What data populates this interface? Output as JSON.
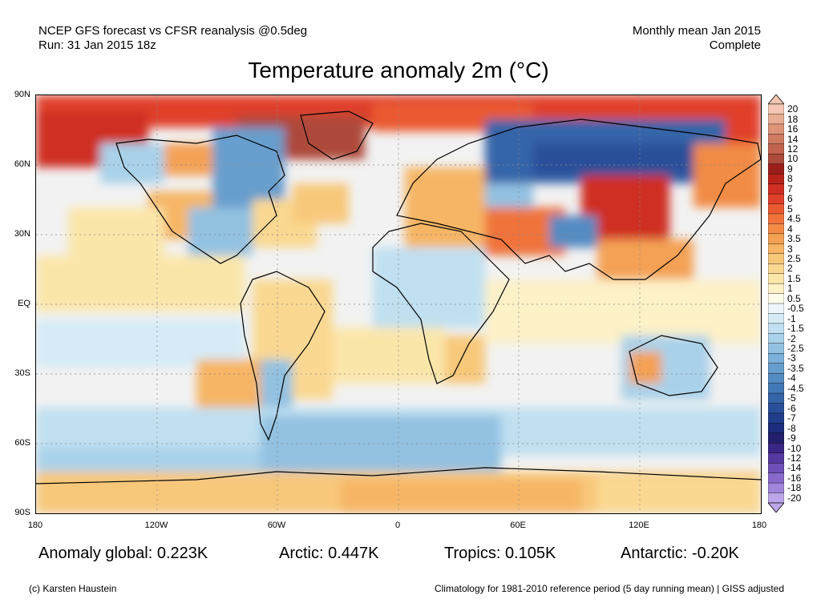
{
  "header": {
    "line1_left": "NCEP GFS forecast vs CFSR reanalysis @0.5deg",
    "line2_left": "Run: 31 Jan 2015 18z",
    "line1_right": "Monthly mean Jan 2015",
    "line2_right": "Complete"
  },
  "title": "Temperature anomaly 2m (°C)",
  "axes": {
    "lat_labels": [
      "90N",
      "60N",
      "30N",
      "EQ",
      "30S",
      "60S",
      "90S"
    ],
    "lon_labels": [
      "180",
      "120W",
      "60W",
      "0",
      "60E",
      "120E",
      "180"
    ]
  },
  "colorbar": {
    "labels": [
      "20",
      "18",
      "16",
      "14",
      "12",
      "10",
      "9",
      "8",
      "7",
      "6",
      "5",
      "4.5",
      "4",
      "3.5",
      "3",
      "2.5",
      "2",
      "1.5",
      "1",
      "0.5",
      "-0.5",
      "-1",
      "-1.5",
      "-2",
      "-2.5",
      "-3",
      "-3.5",
      "-4",
      "-4.5",
      "-5",
      "-6",
      "-7",
      "-8",
      "-9",
      "-10",
      "-12",
      "-14",
      "-16",
      "-18",
      "-20"
    ],
    "colors": [
      "#f3c7b3",
      "#e9ad95",
      "#de9479",
      "#cf7b62",
      "#c0624d",
      "#ad4a3b",
      "#9a1f1a",
      "#b8221c",
      "#cf2f22",
      "#e0402a",
      "#ea5a31",
      "#ef733a",
      "#f28b45",
      "#f4a154",
      "#f6b565",
      "#f8c87a",
      "#fad891",
      "#fbe6aa",
      "#fdf1c7",
      "#fffbea",
      "#eef6fb",
      "#d6ebf6",
      "#c0e0f1",
      "#a9d1ea",
      "#92c1e1",
      "#7cb0d8",
      "#679ecd",
      "#548bc2",
      "#4378b6",
      "#3565a9",
      "#294f99",
      "#213e8b",
      "#1d2d7b",
      "#241f6c",
      "#3b2685",
      "#5639a0",
      "#6f50b6",
      "#8869c9",
      "#a185da",
      "#bca5e8"
    ]
  },
  "stats": {
    "global": "Anomaly global: 0.223K",
    "arctic": "Arctic: 0.447K",
    "tropics": "Tropics: 0.105K",
    "antarctic": "Antarctic: -0.20K"
  },
  "footer": {
    "copyright": "(c) Karsten Haustein",
    "climatology": "Climatology for 1981-2010 reference period (5 day running mean) | GISS adjusted"
  }
}
